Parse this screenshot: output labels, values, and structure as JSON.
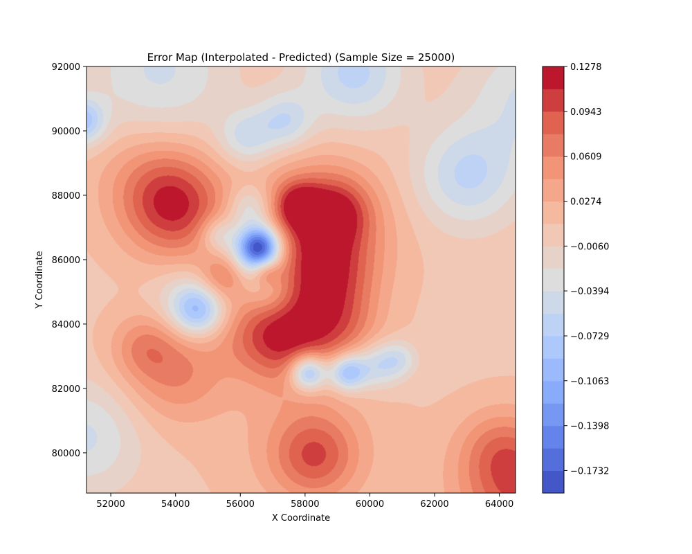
{
  "chart_data": {
    "type": "heatmap",
    "subtype": "filled-contour",
    "title": "Error Map (Interpolated - Predicted) (Sample Size = 25000)",
    "xlabel": "X Coordinate",
    "ylabel": "Y Coordinate",
    "xlim": [
      51250,
      64500
    ],
    "ylim": [
      78750,
      92000
    ],
    "x_ticks": [
      52000,
      54000,
      56000,
      58000,
      60000,
      62000,
      64000
    ],
    "y_ticks": [
      80000,
      82000,
      84000,
      86000,
      88000,
      90000,
      92000
    ],
    "colormap": "coolwarm",
    "colorbar": {
      "min": -0.19,
      "max": 0.1278,
      "ticks": [
        0.1278,
        0.0943,
        0.0609,
        0.0274,
        -0.006,
        -0.0394,
        -0.0729,
        -0.1063,
        -0.1398,
        -0.1732
      ],
      "levels": 19
    },
    "base_level": 0.0072,
    "features": [
      {
        "x": 54000,
        "y": 87600,
        "value": 0.095,
        "spread": 1100
      },
      {
        "x": 53200,
        "y": 88600,
        "value": 0.035,
        "spread": 1200
      },
      {
        "x": 58400,
        "y": 87000,
        "value": 0.085,
        "spread": 1400
      },
      {
        "x": 57800,
        "y": 87700,
        "value": 0.075,
        "spread": 500
      },
      {
        "x": 59000,
        "y": 87500,
        "value": 0.06,
        "spread": 700
      },
      {
        "x": 58700,
        "y": 85400,
        "value": 0.07,
        "spread": 1000
      },
      {
        "x": 57600,
        "y": 83600,
        "value": 0.085,
        "spread": 1000
      },
      {
        "x": 56500,
        "y": 83700,
        "value": 0.04,
        "spread": 900
      },
      {
        "x": 59200,
        "y": 83900,
        "value": 0.04,
        "spread": 800
      },
      {
        "x": 55500,
        "y": 85500,
        "value": 0.065,
        "spread": 500
      },
      {
        "x": 56800,
        "y": 85600,
        "value": 0.055,
        "spread": 300
      },
      {
        "x": 54000,
        "y": 82500,
        "value": 0.055,
        "spread": 1100
      },
      {
        "x": 53000,
        "y": 83300,
        "value": 0.04,
        "spread": 700
      },
      {
        "x": 58300,
        "y": 79900,
        "value": 0.07,
        "spread": 900
      },
      {
        "x": 58000,
        "y": 80500,
        "value": 0.025,
        "spread": 1700
      },
      {
        "x": 64600,
        "y": 79000,
        "value": 0.09,
        "spread": 1300
      },
      {
        "x": 63900,
        "y": 80200,
        "value": 0.03,
        "spread": 800
      },
      {
        "x": 56600,
        "y": 86400,
        "value": -0.185,
        "spread": 450
      },
      {
        "x": 56300,
        "y": 86000,
        "value": -0.06,
        "spread": 700
      },
      {
        "x": 58100,
        "y": 82500,
        "value": -0.13,
        "spread": 400
      },
      {
        "x": 59300,
        "y": 82500,
        "value": -0.11,
        "spread": 400
      },
      {
        "x": 60200,
        "y": 82700,
        "value": -0.06,
        "spread": 500
      },
      {
        "x": 60900,
        "y": 82900,
        "value": -0.045,
        "spread": 400
      },
      {
        "x": 54700,
        "y": 84400,
        "value": -0.095,
        "spread": 550
      },
      {
        "x": 54200,
        "y": 84800,
        "value": -0.03,
        "spread": 700
      },
      {
        "x": 51100,
        "y": 90300,
        "value": -0.09,
        "spread": 500
      },
      {
        "x": 63000,
        "y": 88600,
        "value": -0.065,
        "spread": 1100
      },
      {
        "x": 59500,
        "y": 91800,
        "value": -0.07,
        "spread": 1100
      },
      {
        "x": 56200,
        "y": 89800,
        "value": -0.055,
        "spread": 600
      },
      {
        "x": 57400,
        "y": 90300,
        "value": -0.06,
        "spread": 600
      },
      {
        "x": 53500,
        "y": 91800,
        "value": -0.05,
        "spread": 1500
      },
      {
        "x": 65000,
        "y": 91000,
        "value": -0.05,
        "spread": 1400
      },
      {
        "x": 55300,
        "y": 86800,
        "value": -0.05,
        "spread": 400
      },
      {
        "x": 56300,
        "y": 87600,
        "value": -0.06,
        "spread": 500
      },
      {
        "x": 57000,
        "y": 84900,
        "value": -0.03,
        "spread": 500
      },
      {
        "x": 51200,
        "y": 80500,
        "value": -0.05,
        "spread": 1200
      }
    ]
  }
}
